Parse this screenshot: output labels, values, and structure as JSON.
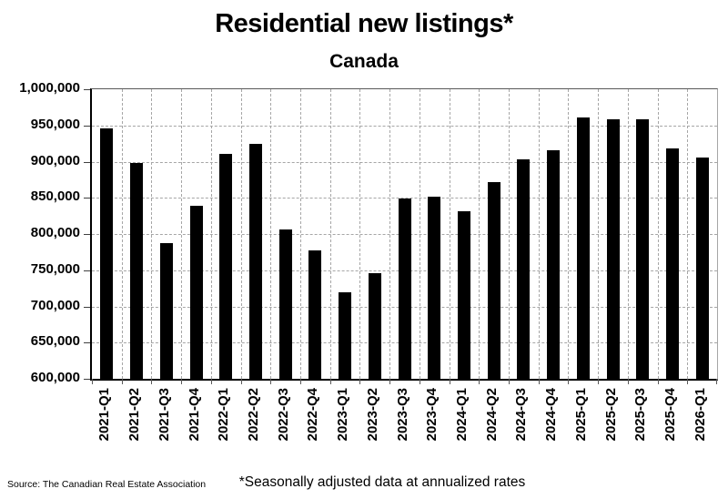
{
  "page": {
    "title": "Residential new listings*",
    "subtitle": "Canada",
    "source": "Source: The Canadian Real Estate Association",
    "footnote": "*Seasonally adjusted data at annualized rates"
  },
  "chart_data": {
    "type": "bar",
    "title": "Residential new listings*",
    "subtitle": "Canada",
    "categories": [
      "2021-Q1",
      "2021-Q2",
      "2021-Q3",
      "2021-Q4",
      "2022-Q1",
      "2022-Q2",
      "2022-Q3",
      "2022-Q4",
      "2023-Q1",
      "2023-Q2",
      "2023-Q3",
      "2023-Q4",
      "2024-Q1",
      "2024-Q2",
      "2024-Q3",
      "2024-Q4",
      "2025-Q1",
      "2025-Q2",
      "2025-Q3",
      "2025-Q4",
      "2026-Q1"
    ],
    "values": [
      946000,
      898000,
      787000,
      839000,
      911000,
      925000,
      806000,
      778000,
      719000,
      746000,
      849000,
      851000,
      831000,
      872000,
      903000,
      916000,
      961000,
      959000,
      958000,
      918000,
      906000
    ],
    "xlabel": "",
    "ylabel": "",
    "ylim": [
      600000,
      1000000
    ],
    "ytick_step": 50000,
    "ytick_labels": [
      "600,000",
      "650,000",
      "700,000",
      "750,000",
      "800,000",
      "850,000",
      "900,000",
      "950,000",
      "1,000,000"
    ],
    "grid": "dashed",
    "legend": "none",
    "bar_color": "#000000",
    "gridline_color": "#a6a6a6",
    "source": "Source: The Canadian Real Estate Association",
    "footnote": "*Seasonally adjusted data at annualized rates"
  }
}
